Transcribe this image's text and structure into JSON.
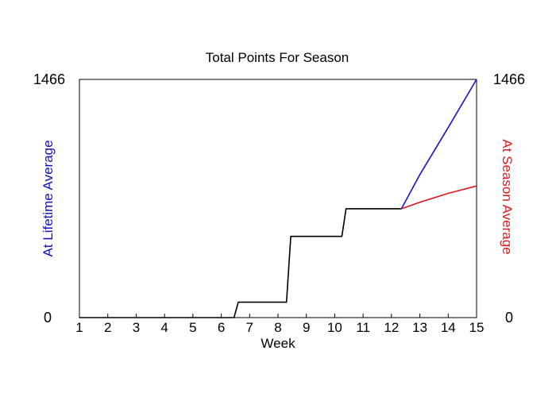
{
  "chart_data": {
    "type": "line",
    "title": "Total Points For Season",
    "xlabel": "Week",
    "ylabel_left": "At Lifetime Average",
    "ylabel_right": "At Season Average",
    "x_ticks": [
      "1",
      "2",
      "3",
      "4",
      "5",
      "6",
      "7",
      "8",
      "9",
      "10",
      "11",
      "12",
      "13",
      "14",
      "15"
    ],
    "xlim": [
      1,
      15
    ],
    "ylim": [
      0,
      1466
    ],
    "y_tick_labels": {
      "left_min": "0",
      "left_max": "1466",
      "right_min": "0",
      "right_max": "1466"
    },
    "grid": false,
    "series": [
      {
        "color": "#000000",
        "points": [
          [
            1,
            0
          ],
          [
            6.45,
            0
          ],
          [
            6.6,
            95
          ],
          [
            8.3,
            95
          ],
          [
            8.45,
            500
          ],
          [
            10.25,
            500
          ],
          [
            10.4,
            670
          ],
          [
            12.35,
            670
          ]
        ]
      },
      {
        "color": "#1414c8",
        "points": [
          [
            12.35,
            670
          ],
          [
            13,
            880
          ],
          [
            14,
            1170
          ],
          [
            15,
            1466
          ]
        ]
      },
      {
        "color": "#e01818",
        "points": [
          [
            12.35,
            670
          ],
          [
            13,
            710
          ],
          [
            14,
            765
          ],
          [
            15,
            810
          ]
        ]
      }
    ]
  }
}
